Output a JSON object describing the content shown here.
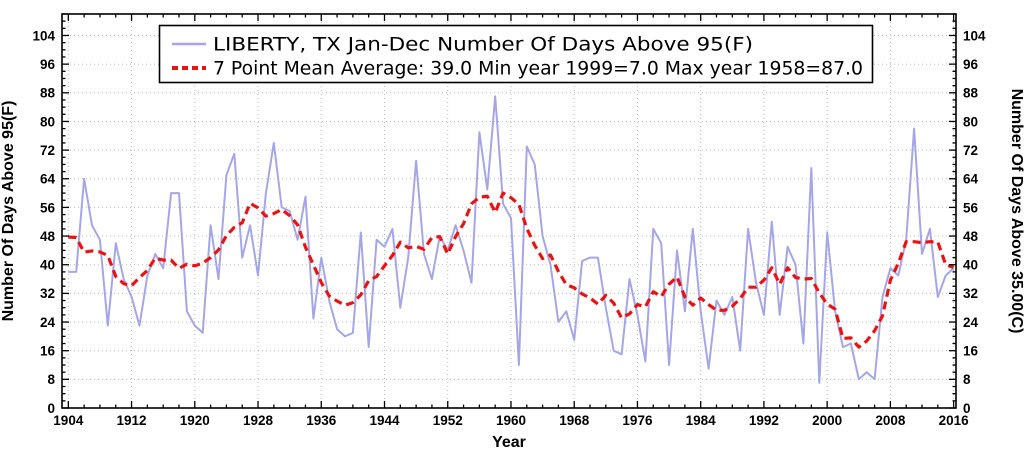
{
  "chart_data": {
    "type": "line",
    "location": "LIBERTY, TX",
    "period": "Jan-Dec",
    "legend": {
      "position": "top-center",
      "entries": [
        {
          "label": "LIBERTY, TX  Jan-Dec  Number Of Days Above 95(F)",
          "style": "solid",
          "color": "#a6a6e6"
        },
        {
          "label": "7 Point Mean  Average: 39.0  Min year 1999=7.0  Max year 1958=87.0",
          "style": "dashed",
          "color": "#e81414"
        }
      ]
    },
    "stats": {
      "average": 39.0,
      "min_year": 1999,
      "min_value": 7.0,
      "max_year": 1958,
      "max_value": 87.0
    },
    "x_axis": {
      "label": "Year",
      "range": [
        1903.2,
        2016.3
      ],
      "major_ticks": [
        1904,
        1912,
        1920,
        1928,
        1936,
        1944,
        1952,
        1960,
        1968,
        1976,
        1984,
        1992,
        2000,
        2008,
        2016
      ],
      "minor_step": 2,
      "grid": true
    },
    "y_axis_left": {
      "label": "Number Of Days Above 95(F)",
      "range": [
        0,
        110
      ],
      "major_ticks": [
        0,
        8,
        16,
        24,
        32,
        40,
        48,
        56,
        64,
        72,
        80,
        88,
        96,
        104
      ],
      "minor_step": 2,
      "grid": true
    },
    "y_axis_right": {
      "label": "Number Of Days Above 35.00(C)",
      "range": [
        0,
        110
      ],
      "major_ticks": [
        0,
        8,
        16,
        24,
        32,
        40,
        48,
        56,
        64,
        72,
        80,
        88,
        96,
        104
      ],
      "minor_step": 2
    },
    "series": [
      {
        "name": "annual_days_above_95F",
        "color": "#a6a6e6",
        "line_width": 2,
        "years": [
          1904,
          1905,
          1906,
          1907,
          1908,
          1909,
          1910,
          1911,
          1912,
          1913,
          1914,
          1915,
          1916,
          1917,
          1918,
          1919,
          1920,
          1921,
          1922,
          1923,
          1924,
          1925,
          1926,
          1927,
          1928,
          1929,
          1930,
          1931,
          1932,
          1933,
          1934,
          1935,
          1936,
          1937,
          1938,
          1939,
          1940,
          1941,
          1942,
          1943,
          1944,
          1945,
          1946,
          1947,
          1948,
          1949,
          1950,
          1951,
          1952,
          1953,
          1954,
          1955,
          1956,
          1957,
          1958,
          1959,
          1960,
          1961,
          1962,
          1963,
          1964,
          1965,
          1966,
          1967,
          1968,
          1969,
          1970,
          1971,
          1972,
          1973,
          1974,
          1975,
          1976,
          1977,
          1978,
          1979,
          1980,
          1981,
          1982,
          1983,
          1984,
          1985,
          1986,
          1987,
          1988,
          1989,
          1990,
          1991,
          1992,
          1993,
          1994,
          1995,
          1996,
          1997,
          1998,
          1999,
          2000,
          2001,
          2002,
          2003,
          2004,
          2005,
          2006,
          2007,
          2008,
          2009,
          2010,
          2011,
          2012,
          2013,
          2014,
          2015,
          2016
        ],
        "values": [
          38,
          38,
          64,
          51,
          47,
          23,
          46,
          36,
          31,
          23,
          37,
          43,
          39,
          60,
          60,
          27,
          23,
          21,
          51,
          36,
          65,
          71,
          42,
          51,
          37,
          60,
          74,
          56,
          55,
          47,
          59,
          25,
          42,
          30,
          22,
          20,
          21,
          49,
          17,
          47,
          45,
          50,
          28,
          42,
          69,
          43,
          36,
          48,
          44,
          51,
          44,
          35,
          77,
          61,
          87,
          57,
          53,
          12,
          73,
          68,
          48,
          40,
          24,
          27,
          19,
          41,
          42,
          42,
          28,
          16,
          15,
          36,
          26,
          13,
          50,
          46,
          12,
          44,
          27,
          50,
          27,
          11,
          30,
          26,
          31,
          16,
          50,
          35,
          26,
          52,
          26,
          45,
          40,
          18,
          67,
          7,
          49,
          27,
          17,
          18,
          8,
          10,
          8,
          31,
          39,
          37,
          47,
          78,
          43,
          50,
          31,
          37,
          39
        ]
      },
      {
        "name": "7_point_mean",
        "color": "#e81414",
        "line_width": 3.2,
        "dash": [
          8,
          5
        ],
        "derived": {
          "method": "centered_moving_average",
          "window": 7,
          "source": "annual_days_above_95F"
        }
      }
    ],
    "grid_color": "#b9b9b9",
    "frame_color": "#000000",
    "background": "#ffffff"
  }
}
